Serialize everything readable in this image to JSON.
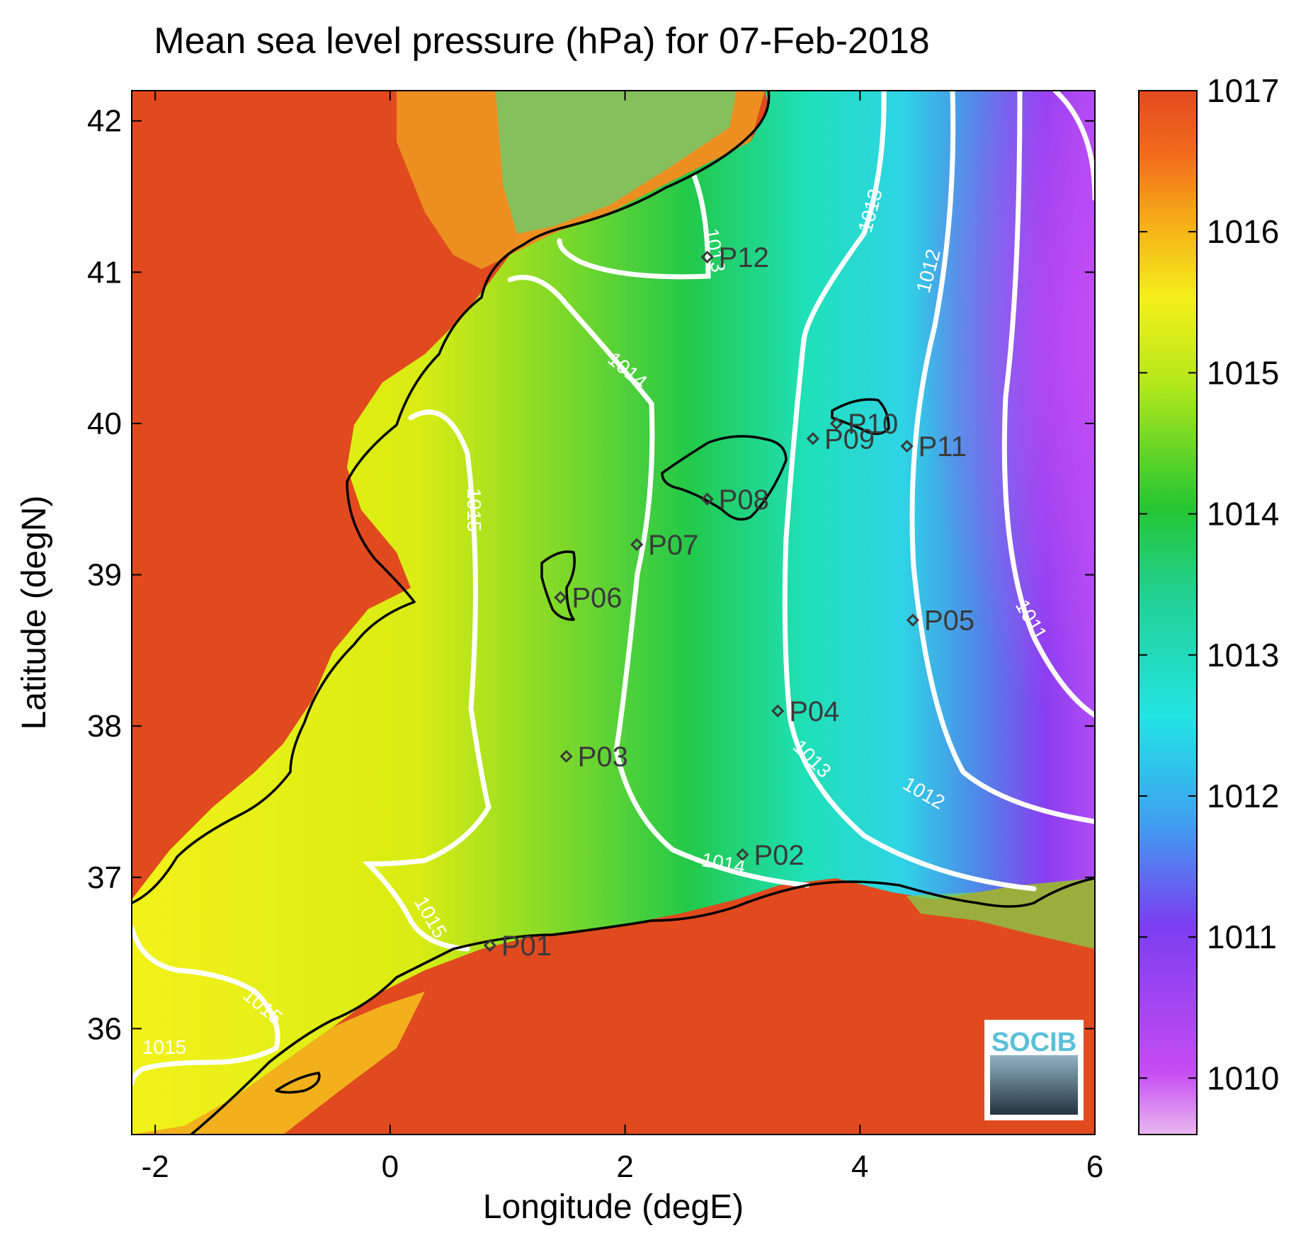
{
  "title": "Mean sea level pressure (hPa) for 07-Feb-2018",
  "xlabel": "Longitude (degE)",
  "ylabel": "Latitude (degN)",
  "logo_text": "SOCIB",
  "colors": {
    "land_high": "#e04a1e",
    "coast": "#000000",
    "contour": "#ffffff",
    "station": "#3a3a3a"
  },
  "chart_data": {
    "type": "heatmap",
    "xlim": [
      -2.2,
      6
    ],
    "ylim": [
      35.3,
      42.2
    ],
    "x_ticks": [
      -2,
      0,
      2,
      4,
      6
    ],
    "y_ticks": [
      36,
      37,
      38,
      39,
      40,
      41,
      42
    ],
    "colorbar": {
      "range": [
        1009.6,
        1017
      ],
      "ticks": [
        1010,
        1011,
        1012,
        1013,
        1014,
        1015,
        1016,
        1017
      ]
    },
    "stations": [
      {
        "name": "P01",
        "lon": 0.85,
        "lat": 36.55
      },
      {
        "name": "P02",
        "lon": 3.0,
        "lat": 37.15
      },
      {
        "name": "P03",
        "lon": 1.5,
        "lat": 37.8
      },
      {
        "name": "P04",
        "lon": 3.3,
        "lat": 38.1
      },
      {
        "name": "P05",
        "lon": 4.45,
        "lat": 38.7
      },
      {
        "name": "P06",
        "lon": 1.45,
        "lat": 38.85
      },
      {
        "name": "P07",
        "lon": 2.1,
        "lat": 39.2
      },
      {
        "name": "P08",
        "lon": 2.7,
        "lat": 39.5
      },
      {
        "name": "P09",
        "lon": 3.6,
        "lat": 39.9
      },
      {
        "name": "P10",
        "lon": 3.8,
        "lat": 40.0
      },
      {
        "name": "P11",
        "lon": 4.4,
        "lat": 39.85
      },
      {
        "name": "P12",
        "lon": 2.7,
        "lat": 41.1
      }
    ],
    "contour_labels": [
      "1011",
      "1012",
      "1012",
      "1013",
      "1013",
      "1013",
      "1014",
      "1014",
      "1015",
      "1015",
      "1015",
      "1015"
    ]
  }
}
